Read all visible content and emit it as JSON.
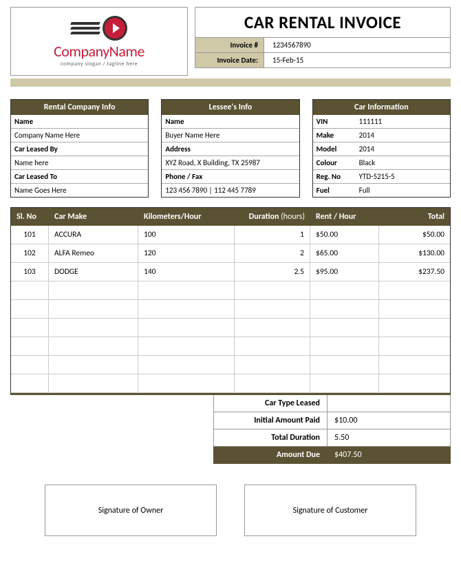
{
  "logo": {
    "name": "CompanyName",
    "tagline": "company slogan / tagline here"
  },
  "doc_title": "CAR RENTAL INVOICE",
  "meta": {
    "invoice_num_label": "Invoice #",
    "invoice_num": "1234567890",
    "invoice_date_label": "Invoice Date:",
    "invoice_date": "15-Feb-15"
  },
  "rental_company": {
    "header": "Rental Company Info",
    "name_label": "Name",
    "name": "Company Name Here",
    "leased_by_label": "Car Leased By",
    "leased_by": "Name here",
    "leased_to_label": "Car Leased To",
    "leased_to": "Name Goes Here"
  },
  "lessee": {
    "header": "Lessee's Info",
    "name_label": "Name",
    "name": "Buyer Name Here",
    "address_label": "Address",
    "address": "XYZ Road, X Building, TX 25987",
    "phone_label": "Phone / Fax",
    "phone": "123 456 7890 | 112 445 7789"
  },
  "car": {
    "header": "Car Information",
    "vin_label": "VIN",
    "vin": "111111",
    "make_label": "Make",
    "make": "2014",
    "model_label": "Model",
    "model": "2014",
    "colour_label": "Colour",
    "colour": "Black",
    "reg_label": "Reg. No",
    "reg": "YTD-5215-5",
    "fuel_label": "Fuel",
    "fuel": "Full"
  },
  "items": {
    "headers": {
      "sl": "Sl. No",
      "make": "Car Make",
      "km": "Kilometers/Hour",
      "dur": "Duration",
      "dur_suffix": "(hours)",
      "rent": "Rent / Hour",
      "total": "Total"
    },
    "rows": [
      {
        "sl": "101",
        "make": "ACCURA",
        "km": "100",
        "dur": "1",
        "rent": "$50.00",
        "total": "$50.00"
      },
      {
        "sl": "102",
        "make": "ALFA Remeo",
        "km": "120",
        "dur": "2",
        "rent": "$65.00",
        "total": "$130.00"
      },
      {
        "sl": "103",
        "make": "DODGE",
        "km": "140",
        "dur": "2.5",
        "rent": "$95.00",
        "total": "$237.50"
      }
    ],
    "empty_rows": 6
  },
  "summary": {
    "car_type_label": "Car Type Leased",
    "car_type": "",
    "initial_label": "Initial Amount Paid",
    "initial": "$10.00",
    "duration_label": "Total Duration",
    "duration": "5.50",
    "due_label": "Amount Due",
    "due": "$407.50"
  },
  "signatures": {
    "owner": "Signature of Owner",
    "customer": "Signature of Customer"
  },
  "colors": {
    "header_bg": "#5a5232",
    "beige": "#cfc9a8",
    "logo_red": "#c41e3a"
  }
}
